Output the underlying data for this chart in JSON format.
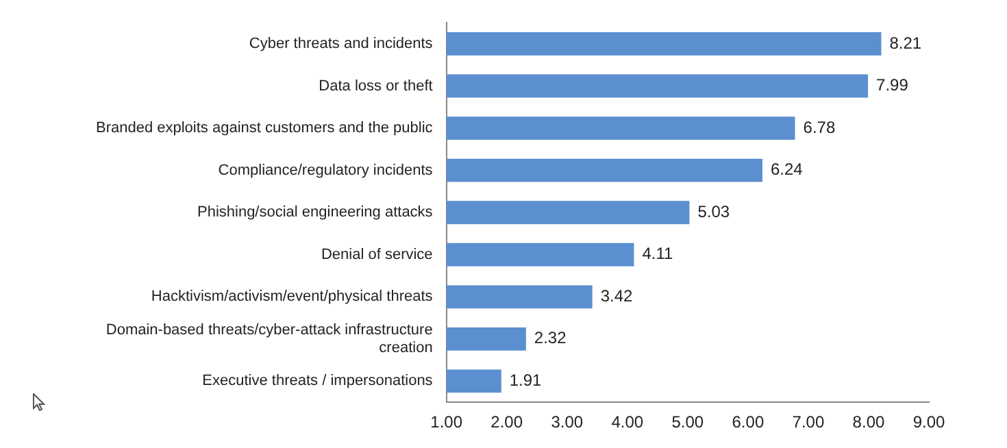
{
  "chart_data": {
    "type": "bar",
    "orientation": "horizontal",
    "categories": [
      "Cyber threats and incidents",
      "Data loss or theft",
      "Branded exploits against customers and the public",
      "Compliance/regulatory incidents",
      "Phishing/social engineering attacks",
      "Denial of service",
      "Hacktivism/activism/event/physical threats",
      "Domain-based threats/cyber-attack infrastructure creation",
      "Executive threats / impersonations"
    ],
    "values": [
      8.21,
      7.99,
      6.78,
      6.24,
      5.03,
      4.11,
      3.42,
      2.32,
      1.91
    ],
    "color": "#5b8fd0",
    "xlim": [
      1,
      9
    ],
    "xticks": [
      {
        "value": 1,
        "label": "1.00"
      },
      {
        "value": 2,
        "label": "2.00"
      },
      {
        "value": 3,
        "label": "3.00"
      },
      {
        "value": 4,
        "label": "4.00"
      },
      {
        "value": 5,
        "label": "5.00"
      },
      {
        "value": 6,
        "label": "6.00"
      },
      {
        "value": 7,
        "label": "7.00"
      },
      {
        "value": 8,
        "label": "8.00"
      },
      {
        "value": 9,
        "label": "9.00"
      }
    ],
    "data_labels": true,
    "grid": false,
    "legend": false
  }
}
